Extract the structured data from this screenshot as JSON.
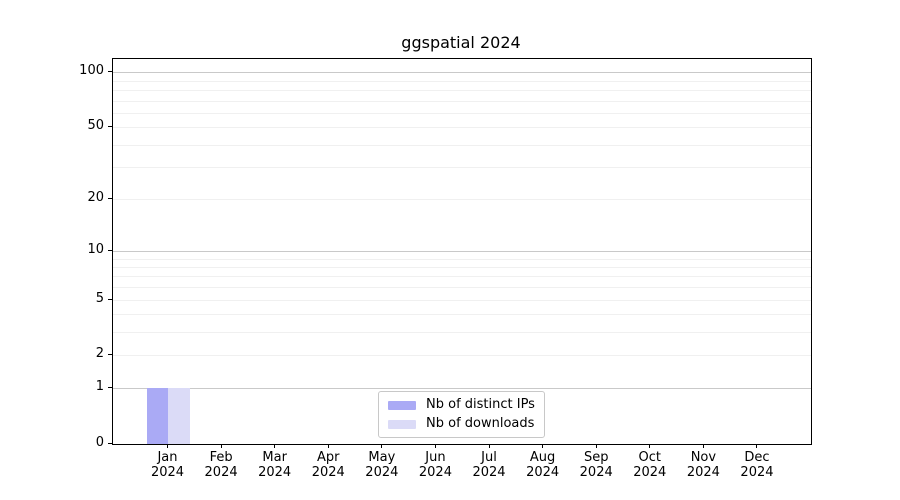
{
  "chart_data": {
    "type": "bar",
    "title": "ggspatial 2024",
    "categories": [
      "Jan 2024",
      "Feb 2024",
      "Mar 2024",
      "Apr 2024",
      "May 2024",
      "Jun 2024",
      "Jul 2024",
      "Aug 2024",
      "Sep 2024",
      "Oct 2024",
      "Nov 2024",
      "Dec 2024"
    ],
    "series": [
      {
        "name": "Nb of distinct IPs",
        "color": "#aaaaf5",
        "values": [
          1,
          0,
          0,
          0,
          0,
          0,
          0,
          0,
          0,
          0,
          0,
          0
        ]
      },
      {
        "name": "Nb of downloads",
        "color": "#dbdbf7",
        "values": [
          1,
          0,
          0,
          0,
          0,
          0,
          0,
          0,
          0,
          0,
          0,
          0
        ]
      }
    ],
    "xlabel": "",
    "ylabel": "",
    "yscale": "log1p",
    "ylim": [
      0,
      118
    ],
    "yticks": [
      0,
      1,
      2,
      5,
      10,
      20,
      50,
      100
    ],
    "major_gridlines": [
      1,
      10,
      100
    ],
    "minor_gridlines": [
      2,
      3,
      4,
      5,
      6,
      7,
      8,
      9,
      20,
      30,
      40,
      50,
      60,
      70,
      80,
      90
    ],
    "grid": true,
    "legend_position": "lower center"
  },
  "colors": {
    "major_gridline": "#c9c9c9",
    "minor_gridline": "#f0f0f0",
    "axis": "#000000",
    "background": "#ffffff",
    "legend_border": "#c8c8c8"
  }
}
